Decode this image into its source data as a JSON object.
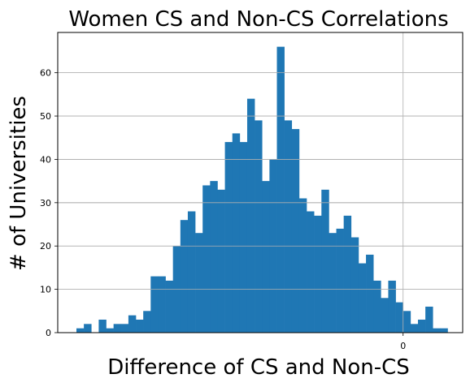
{
  "chart_data": {
    "type": "bar",
    "title": "Women CS and Non-CS Correlations",
    "xlabel": "Difference of CS and Non-CS",
    "ylabel": "# of Universities",
    "x_ticks": [
      "0"
    ],
    "y_ticks": [
      "0",
      "10",
      "20",
      "30",
      "40",
      "50",
      "60"
    ],
    "ylim": [
      0,
      69.3
    ],
    "grid": true,
    "bar_color": "#1f77b4",
    "zero_bin_index": 44,
    "values": [
      1,
      2,
      0,
      3,
      1,
      2,
      2,
      4,
      3,
      5,
      13,
      13,
      12,
      20,
      26,
      28,
      23,
      34,
      35,
      33,
      44,
      46,
      44,
      54,
      49,
      35,
      40,
      66,
      49,
      47,
      31,
      28,
      27,
      33,
      23,
      24,
      27,
      22,
      16,
      18,
      12,
      8,
      12,
      7,
      5,
      2,
      3,
      6,
      1,
      1
    ]
  }
}
